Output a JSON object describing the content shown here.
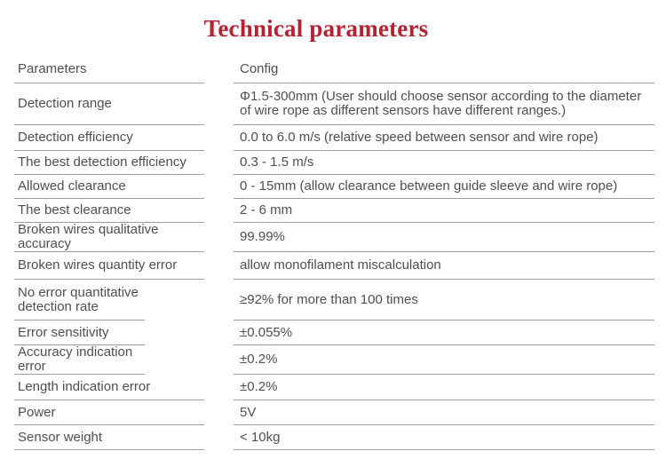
{
  "page": {
    "title": "Technical parameters"
  },
  "table": {
    "header": {
      "param": "Parameters",
      "config": "Config"
    },
    "rows": [
      {
        "param": "Detection range",
        "config": "Φ1.5-300mm (User should choose sensor according to the diameter of wire rope as different sensors have different ranges.)"
      },
      {
        "param": "Detection efficiency",
        "config": "0.0 to 6.0 m/s (relative speed between sensor and wire rope)"
      },
      {
        "param": "The best detection efficiency",
        "config": "0.3 - 1.5 m/s"
      },
      {
        "param": "Allowed clearance",
        "config": "0 - 15mm (allow clearance between guide sleeve and wire rope)"
      },
      {
        "param": "The best clearance",
        "config": "2 - 6 mm"
      },
      {
        "param": "Broken wires qualitative accuracy",
        "config": "99.99%"
      },
      {
        "param": "Broken wires quantity error",
        "config": "allow monofilament miscalculation"
      },
      {
        "param": "No error quantitative detection rate",
        "config": "≥92% for more than 100 times"
      },
      {
        "param": "Error sensitivity",
        "config": "±0.055%"
      },
      {
        "param": "Accuracy indication error",
        "config": "±0.2%"
      },
      {
        "param": "Length indication error",
        "config": "±0.2%"
      },
      {
        "param": "Power",
        "config": "5V"
      },
      {
        "param": "Sensor weight",
        "config": "< 10kg"
      }
    ]
  },
  "colors": {
    "title": "#b52232",
    "text": "#4f4f4f",
    "rule": "#9e9e9e",
    "background": "#ffffff"
  }
}
